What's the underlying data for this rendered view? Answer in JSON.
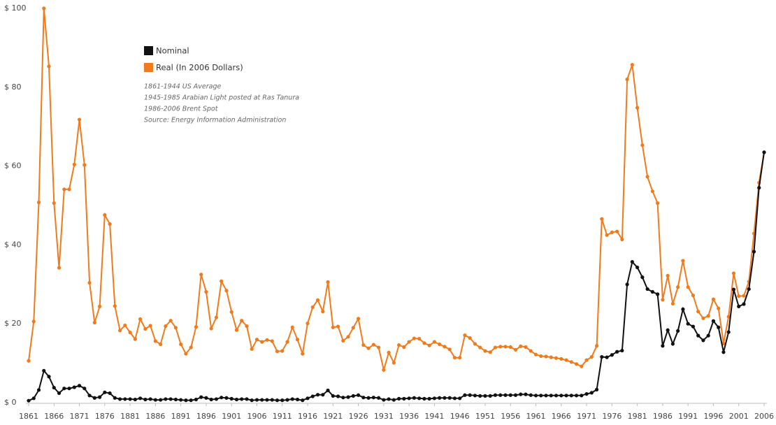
{
  "chart_data": {
    "type": "line",
    "annotations": [
      "1861-1944 US Average",
      "1945-1985 Arabian Light posted at Ras Tanura",
      "1986-2006 Brent Spot",
      "Source: Energy Information Administration"
    ],
    "x": [
      1861,
      1862,
      1863,
      1864,
      1865,
      1866,
      1867,
      1868,
      1869,
      1870,
      1871,
      1872,
      1873,
      1874,
      1875,
      1876,
      1877,
      1878,
      1879,
      1880,
      1881,
      1882,
      1883,
      1884,
      1885,
      1886,
      1887,
      1888,
      1889,
      1890,
      1891,
      1892,
      1893,
      1894,
      1895,
      1896,
      1897,
      1898,
      1899,
      1900,
      1901,
      1902,
      1903,
      1904,
      1905,
      1906,
      1907,
      1908,
      1909,
      1910,
      1911,
      1912,
      1913,
      1914,
      1915,
      1916,
      1917,
      1918,
      1919,
      1920,
      1921,
      1922,
      1923,
      1924,
      1925,
      1926,
      1927,
      1928,
      1929,
      1930,
      1931,
      1932,
      1933,
      1934,
      1935,
      1936,
      1937,
      1938,
      1939,
      1940,
      1941,
      1942,
      1943,
      1944,
      1945,
      1946,
      1947,
      1948,
      1949,
      1950,
      1951,
      1952,
      1953,
      1954,
      1955,
      1956,
      1957,
      1958,
      1959,
      1960,
      1961,
      1962,
      1963,
      1964,
      1965,
      1966,
      1967,
      1968,
      1969,
      1970,
      1971,
      1972,
      1973,
      1974,
      1975,
      1976,
      1977,
      1978,
      1979,
      1980,
      1981,
      1982,
      1983,
      1984,
      1985,
      1986,
      1987,
      1988,
      1989,
      1990,
      1991,
      1992,
      1993,
      1994,
      1995,
      1996,
      1997,
      1998,
      1999,
      2000,
      2001,
      2002,
      2003,
      2004,
      2005,
      2006
    ],
    "series": [
      {
        "name": "Real (In 2006 Dollars)",
        "color": "#f07b1d",
        "values": [
          10.6,
          20.6,
          50.8,
          100,
          85.3,
          50.6,
          34.2,
          54.1,
          54.1,
          60.4,
          71.8,
          60.3,
          30.4,
          20.3,
          24.4,
          47.6,
          45.3,
          24.5,
          18.3,
          19.6,
          17.8,
          16.1,
          21.2,
          18.7,
          19.5,
          15.6,
          14.8,
          19.4,
          20.8,
          19.0,
          14.8,
          12.4,
          14.0,
          19.2,
          32.5,
          28.1,
          18.8,
          21.6,
          30.8,
          28.4,
          23.0,
          18.4,
          20.8,
          19.4,
          13.6,
          16.0,
          15.4,
          15.9,
          15.6,
          13.0,
          13.1,
          15.4,
          19.1,
          16.0,
          12.4,
          20.1,
          24.2,
          26.0,
          23.1,
          30.6,
          19.1,
          19.3,
          15.7,
          16.7,
          19.0,
          21.3,
          14.6,
          13.8,
          14.7,
          14.0,
          8.3,
          12.7,
          10.1,
          14.6,
          14.1,
          15.4,
          16.3,
          16.2,
          15.1,
          14.5,
          15.4,
          14.8,
          14.2,
          13.5,
          11.4,
          11.4,
          17.1,
          16.4,
          14.9,
          14.0,
          13.1,
          12.8,
          14.0,
          14.2,
          14.2,
          14.1,
          13.4,
          14.3,
          14.1,
          13.1,
          12.2,
          11.8,
          11.7,
          11.5,
          11.3,
          11.1,
          10.8,
          10.3,
          9.8,
          9.2,
          10.8,
          11.6,
          14.4,
          46.6,
          42.5,
          43.2,
          43.4,
          41.4,
          82.0,
          85.7,
          74.8,
          65.3,
          57.3,
          53.6,
          50.6,
          26.1,
          32.2,
          25.1,
          29.3,
          36.0,
          29.3,
          27.2,
          23.1,
          21.4,
          22.0,
          26.2,
          23.9,
          15.0,
          21.8,
          32.8,
          27.0,
          27.1,
          30.7,
          42.9,
          55.8,
          63.5
        ]
      },
      {
        "name": "Nominal",
        "color": "#111111",
        "values": [
          0.5,
          1.1,
          3.2,
          8.1,
          6.6,
          3.8,
          2.4,
          3.6,
          3.6,
          3.9,
          4.3,
          3.6,
          1.8,
          1.2,
          1.4,
          2.6,
          2.4,
          1.2,
          0.9,
          0.9,
          0.9,
          0.8,
          1.1,
          0.8,
          0.9,
          0.7,
          0.7,
          0.9,
          0.9,
          0.8,
          0.7,
          0.6,
          0.6,
          0.8,
          1.4,
          1.2,
          0.8,
          0.9,
          1.3,
          1.2,
          1.0,
          0.8,
          0.9,
          0.9,
          0.6,
          0.7,
          0.7,
          0.7,
          0.7,
          0.6,
          0.6,
          0.7,
          0.9,
          0.8,
          0.6,
          1.1,
          1.6,
          2.0,
          2.0,
          3.1,
          1.7,
          1.6,
          1.3,
          1.4,
          1.7,
          1.9,
          1.3,
          1.2,
          1.3,
          1.2,
          0.7,
          0.9,
          0.7,
          1.0,
          1.0,
          1.1,
          1.2,
          1.1,
          1.0,
          1.0,
          1.1,
          1.2,
          1.2,
          1.2,
          1.1,
          1.1,
          1.9,
          1.9,
          1.8,
          1.7,
          1.7,
          1.7,
          1.9,
          1.9,
          1.9,
          1.9,
          1.9,
          2.1,
          2.1,
          1.9,
          1.8,
          1.8,
          1.8,
          1.8,
          1.8,
          1.8,
          1.8,
          1.8,
          1.8,
          1.8,
          2.2,
          2.5,
          3.3,
          11.6,
          11.5,
          12.1,
          12.9,
          13.2,
          30.0,
          35.7,
          34.3,
          31.8,
          28.8,
          28.1,
          27.5,
          14.4,
          18.4,
          14.9,
          18.2,
          23.7,
          20.0,
          19.3,
          17.0,
          15.8,
          17.0,
          20.7,
          19.1,
          12.8,
          17.9,
          28.7,
          24.4,
          25.0,
          28.8,
          38.3,
          54.5,
          63.5
        ]
      }
    ],
    "legend_order": [
      1,
      0
    ],
    "xlim": [
      1861,
      2006
    ],
    "xticks": [
      1861,
      1866,
      1871,
      1876,
      1881,
      1886,
      1891,
      1896,
      1901,
      1906,
      1911,
      1916,
      1921,
      1926,
      1931,
      1936,
      1941,
      1946,
      1951,
      1956,
      1961,
      1966,
      1971,
      1976,
      1981,
      1986,
      1991,
      1996,
      2001,
      2006
    ],
    "ylim": [
      0,
      100
    ],
    "yticks": [
      {
        "value": 0,
        "label": "$ 0"
      },
      {
        "value": 20,
        "label": "$ 20"
      },
      {
        "value": 40,
        "label": "$ 40"
      },
      {
        "value": 60,
        "label": "$ 60"
      },
      {
        "value": 80,
        "label": "$ 80"
      },
      {
        "value": 100,
        "label": "$ 100"
      }
    ],
    "grid": false
  }
}
